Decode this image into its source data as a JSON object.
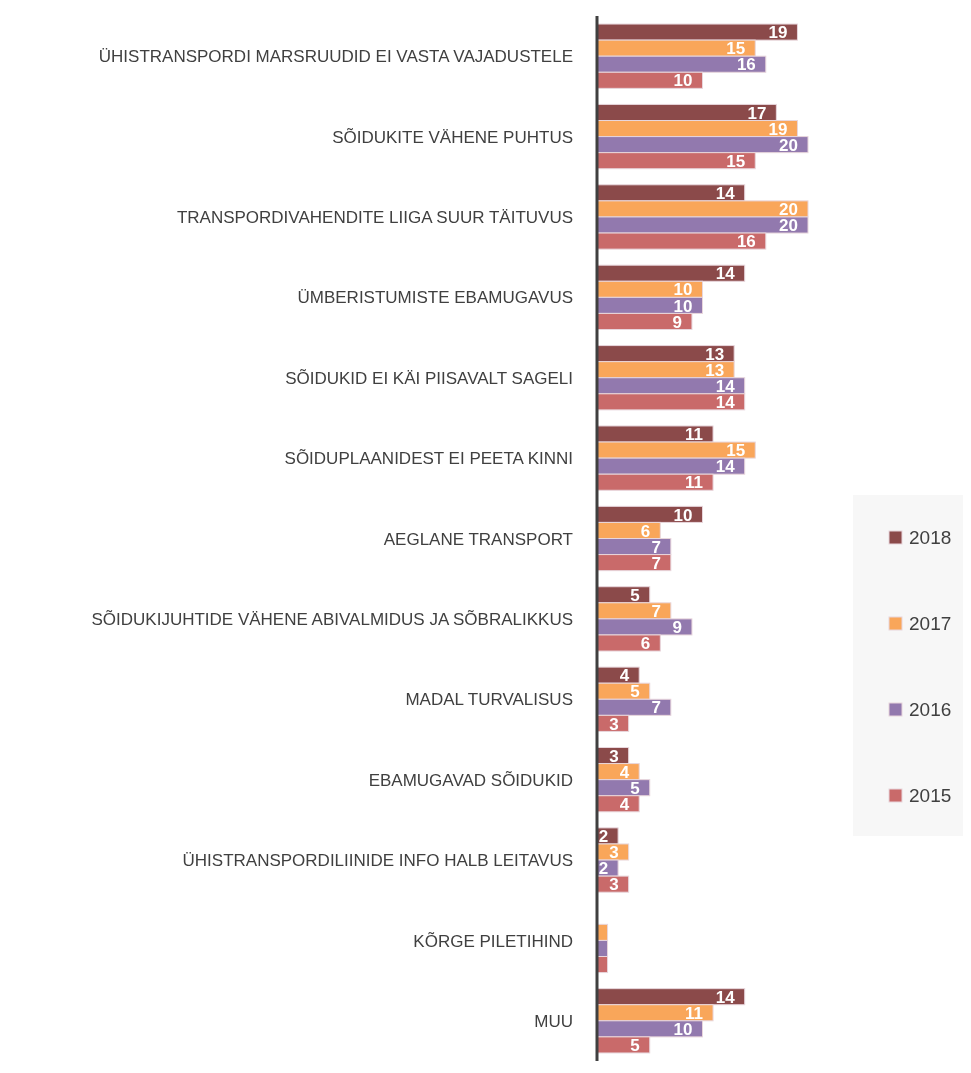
{
  "chart_data": {
    "type": "bar",
    "orientation": "horizontal",
    "categories": [
      "ÜHISTRANSPORDI MARSRUUDID EI VASTA VAJADUSTELE",
      "SÕIDUKITE VÄHENE PUHTUS",
      "TRANSPORDIVAHENDITE LIIGA SUUR TÄITUVUS",
      "ÜMBERISTUMISTE EBAMUGAVUS",
      "SÕIDUKID EI KÄI PIISAVALT SAGELI",
      "SÕIDUPLAANIDEST EI PEETA KINNI",
      "AEGLANE TRANSPORT",
      "SÕIDUKIJUHTIDE VÄHENE ABIVALMIDUS JA SÕBRALIKKUS",
      "MADAL TURVALISUS",
      "EBAMUGAVAD SÕIDUKID",
      "ÜHISTRANSPORDILIINIDE INFO HALB LEITAVUS",
      "KÕRGE PILETIHIND",
      "MUU"
    ],
    "series": [
      {
        "name": "2018",
        "color": "#8b4a4a",
        "values": [
          19,
          17,
          14,
          14,
          13,
          11,
          10,
          5,
          4,
          3,
          2,
          0,
          14
        ],
        "value_labels": [
          "19",
          "17",
          "14",
          "14",
          "13",
          "11",
          "10",
          "5",
          "4",
          "3",
          "2",
          null,
          "14"
        ]
      },
      {
        "name": "2017",
        "color": "#f9a65a",
        "values": [
          15,
          19,
          20,
          10,
          13,
          15,
          6,
          7,
          5,
          4,
          3,
          1,
          11
        ],
        "value_labels": [
          "15",
          "19",
          "20",
          "10",
          "13",
          "15",
          "6",
          "7",
          "5",
          "4",
          "3",
          null,
          "11"
        ]
      },
      {
        "name": "2016",
        "color": "#9279ae",
        "values": [
          16,
          20,
          20,
          10,
          14,
          14,
          7,
          9,
          7,
          5,
          2,
          1,
          10
        ],
        "value_labels": [
          "16",
          "20",
          "20",
          "10",
          "14",
          "14",
          "7",
          "9",
          "7",
          "5",
          "2",
          null,
          "10"
        ]
      },
      {
        "name": "2015",
        "color": "#c96a6a",
        "values": [
          10,
          15,
          16,
          9,
          14,
          11,
          7,
          6,
          3,
          4,
          3,
          1,
          5
        ],
        "value_labels": [
          "10",
          "15",
          "16",
          "9",
          "14",
          "11",
          "7",
          "6",
          "3",
          "4",
          "3",
          null,
          "5"
        ]
      }
    ],
    "legend": "right",
    "grid": false
  }
}
